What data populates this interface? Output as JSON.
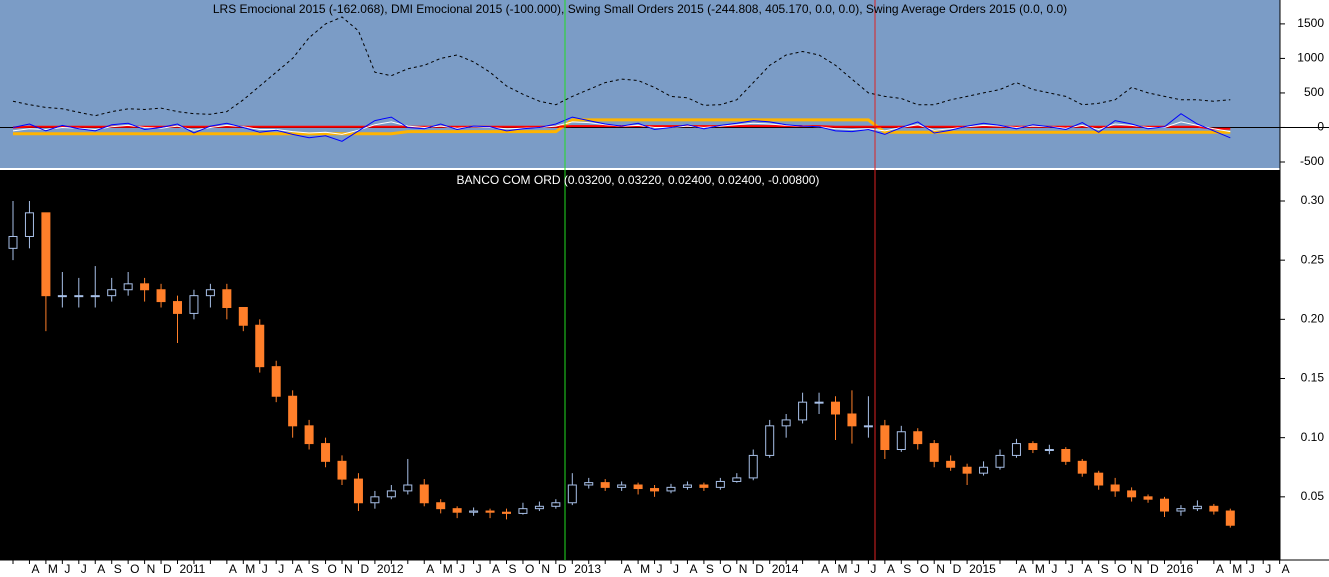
{
  "chart_data": [
    {
      "type": "line",
      "title": "LRS Emocional 2015 (-162.068), DMI Emocional 2015 (-100.000), Swing Small Orders 2015 (-244.808, 405.170, 0.0, 0.0), Swing Average Orders 2015 (0.0, 0.0)",
      "ylim": [
        -587,
        1846
      ],
      "yticks": [
        -500,
        0,
        500,
        1000,
        1500
      ],
      "zero_line": true,
      "background": "#7b9cc6",
      "series": [
        {
          "color": "#ffb400",
          "width": 3,
          "values": [
            -90,
            -90,
            -90,
            -90,
            -90,
            -90,
            -90,
            -90,
            -90,
            -90,
            -90,
            -90,
            -90,
            -90,
            -90,
            -90,
            -90,
            -90,
            -90,
            -90,
            -90,
            -90,
            -90,
            -90,
            -60,
            -60,
            -60,
            -60,
            -60,
            -60,
            -60,
            -60,
            -60,
            -60,
            110,
            110,
            110,
            110,
            110,
            110,
            110,
            110,
            110,
            110,
            110,
            110,
            110,
            110,
            110,
            110,
            110,
            110,
            110,
            -70,
            -70,
            -70,
            -70,
            -70,
            -70,
            -70,
            -70,
            -70,
            -70,
            -70,
            -70,
            -70,
            -70,
            -70,
            -70,
            -70,
            -70,
            -70,
            -70,
            -70,
            -70
          ]
        },
        {
          "color": "#ff0000",
          "width": 2,
          "values": [
            0,
            10,
            10,
            10,
            10,
            10,
            10,
            10,
            10,
            10,
            10,
            10,
            10,
            10,
            10,
            10,
            10,
            10,
            10,
            10,
            10,
            10,
            10,
            10,
            10,
            10,
            10,
            10,
            10,
            10,
            10,
            10,
            10,
            10,
            20,
            20,
            20,
            20,
            20,
            20,
            20,
            20,
            20,
            20,
            20,
            20,
            20,
            20,
            20,
            20,
            10,
            10,
            10,
            10,
            10,
            10,
            10,
            10,
            10,
            10,
            10,
            10,
            10,
            10,
            10,
            10,
            10,
            10,
            10,
            10,
            10,
            10,
            10,
            -20,
            -20
          ]
        },
        {
          "color": "#ffffff",
          "width": 1,
          "values": [
            -50,
            -20,
            -30,
            0,
            -10,
            -30,
            10,
            30,
            0,
            -10,
            20,
            -40,
            0,
            30,
            10,
            -30,
            -30,
            -60,
            -80,
            -70,
            -100,
            -40,
            40,
            80,
            20,
            0,
            20,
            -10,
            10,
            0,
            -20,
            -10,
            0,
            20,
            80,
            70,
            40,
            20,
            30,
            0,
            0,
            20,
            0,
            20,
            40,
            60,
            50,
            30,
            20,
            10,
            -20,
            -30,
            -20,
            -50,
            0,
            40,
            -40,
            -20,
            10,
            30,
            20,
            0,
            20,
            10,
            -10,
            30,
            -30,
            50,
            30,
            0,
            0,
            80,
            30,
            -20,
            -60
          ]
        },
        {
          "color": "#0000ff",
          "width": 1,
          "values": [
            0,
            50,
            -50,
            30,
            -20,
            -50,
            40,
            60,
            -30,
            0,
            50,
            -80,
            20,
            60,
            0,
            -70,
            -40,
            -100,
            -150,
            -120,
            -200,
            -50,
            100,
            150,
            0,
            -20,
            50,
            -30,
            20,
            10,
            -50,
            -20,
            0,
            50,
            150,
            100,
            50,
            20,
            60,
            -30,
            0,
            40,
            -20,
            30,
            60,
            100,
            80,
            40,
            20,
            10,
            -50,
            -60,
            -30,
            -100,
            0,
            80,
            -80,
            -40,
            20,
            60,
            30,
            -20,
            40,
            10,
            -30,
            70,
            -70,
            100,
            50,
            -20,
            10,
            200,
            50,
            -50,
            -150
          ]
        },
        {
          "color": "#000000",
          "width": 1,
          "dashed": true,
          "values": [
            380,
            330,
            290,
            270,
            220,
            170,
            230,
            270,
            260,
            280,
            230,
            200,
            190,
            230,
            400,
            600,
            800,
            1000,
            1300,
            1500,
            1600,
            1400,
            800,
            750,
            850,
            900,
            1000,
            1050,
            950,
            800,
            600,
            480,
            380,
            330,
            450,
            550,
            650,
            700,
            680,
            580,
            450,
            430,
            320,
            330,
            400,
            650,
            900,
            1050,
            1100,
            1050,
            900,
            700,
            500,
            450,
            420,
            330,
            330,
            400,
            450,
            500,
            550,
            650,
            550,
            500,
            450,
            330,
            350,
            400,
            580,
            500,
            450,
            400,
            400,
            380,
            400
          ]
        }
      ]
    },
    {
      "type": "candlestick",
      "title": "BANCO COM ORD (0.03200, 0.03220, 0.02400, 0.02400, -0.00800)",
      "ylim": [
        0,
        0.3245
      ],
      "yticks": [
        {
          "value": 0.05,
          "label": "0.05"
        },
        {
          "value": 0.1,
          "label": "0.10"
        },
        {
          "value": 0.15,
          "label": "0.15"
        },
        {
          "value": 0.2,
          "label": "0.20"
        },
        {
          "value": 0.25,
          "label": "0.25"
        },
        {
          "value": 0.3,
          "label": "0.30"
        }
      ],
      "up_color": "#a8c0e8",
      "down_color": "#ff7f2a",
      "background": "#000000",
      "categories": [
        null,
        "A",
        "M",
        "J",
        "J",
        "A",
        "S",
        "O",
        "N",
        "D",
        "2011",
        null,
        null,
        "A",
        "M",
        "J",
        "J",
        "A",
        "S",
        "O",
        "N",
        "D",
        "2012",
        null,
        null,
        "A",
        "M",
        "J",
        "J",
        "A",
        "S",
        "O",
        "N",
        "D",
        "2013",
        null,
        null,
        "A",
        "M",
        "J",
        "J",
        "A",
        "S",
        "O",
        "N",
        "D",
        "2014",
        null,
        null,
        "A",
        "M",
        "J",
        "J",
        "A",
        "S",
        "O",
        "N",
        "D",
        "2015",
        null,
        null,
        "A",
        "M",
        "J",
        "J",
        "A",
        "S",
        "O",
        "N",
        "D",
        "2016",
        null,
        null,
        "A",
        "M",
        "J",
        "J",
        "A"
      ],
      "open": [
        0.26,
        0.27,
        0.29,
        0.22,
        0.22,
        0.22,
        0.22,
        0.225,
        0.23,
        0.225,
        0.215,
        0.205,
        0.22,
        0.225,
        0.21,
        0.195,
        0.16,
        0.135,
        0.11,
        0.095,
        0.08,
        0.065,
        0.045,
        0.05,
        0.055,
        0.06,
        0.045,
        0.04,
        0.037,
        0.038,
        0.037,
        0.036,
        0.04,
        0.042,
        0.045,
        0.06,
        0.062,
        0.058,
        0.06,
        0.057,
        0.055,
        0.058,
        0.06,
        0.058,
        0.063,
        0.066,
        0.085,
        0.11,
        0.115,
        0.13,
        0.13,
        0.12,
        0.11,
        0.11,
        0.09,
        0.105,
        0.095,
        0.08,
        0.075,
        0.07,
        0.075,
        0.085,
        0.095,
        0.09,
        0.09,
        0.08,
        0.07,
        0.06,
        0.055,
        0.05,
        0.048,
        0.038,
        0.04,
        0.042,
        0.038,
        null,
        null,
        null
      ],
      "high": [
        0.3,
        0.3,
        0.29,
        0.24,
        0.235,
        0.245,
        0.235,
        0.24,
        0.235,
        0.23,
        0.22,
        0.225,
        0.23,
        0.23,
        0.21,
        0.2,
        0.165,
        0.14,
        0.115,
        0.1,
        0.085,
        0.07,
        0.055,
        0.06,
        0.082,
        0.065,
        0.048,
        0.042,
        0.041,
        0.04,
        0.04,
        0.045,
        0.046,
        0.048,
        0.07,
        0.066,
        0.065,
        0.063,
        0.062,
        0.06,
        0.061,
        0.063,
        0.062,
        0.066,
        0.07,
        0.09,
        0.115,
        0.12,
        0.138,
        0.138,
        0.135,
        0.14,
        0.135,
        0.115,
        0.11,
        0.108,
        0.098,
        0.085,
        0.078,
        0.08,
        0.09,
        0.099,
        0.097,
        0.094,
        0.092,
        0.082,
        0.072,
        0.066,
        0.058,
        0.052,
        0.05,
        0.043,
        0.047,
        0.044,
        0.04,
        null,
        null,
        null
      ],
      "low": [
        0.25,
        0.26,
        0.19,
        0.21,
        0.21,
        0.21,
        0.215,
        0.22,
        0.215,
        0.21,
        0.18,
        0.2,
        0.21,
        0.2,
        0.19,
        0.155,
        0.13,
        0.1,
        0.09,
        0.075,
        0.06,
        0.038,
        0.04,
        0.048,
        0.052,
        0.042,
        0.036,
        0.032,
        0.034,
        0.032,
        0.031,
        0.035,
        0.038,
        0.04,
        0.043,
        0.057,
        0.055,
        0.055,
        0.052,
        0.05,
        0.053,
        0.056,
        0.055,
        0.056,
        0.062,
        0.064,
        0.083,
        0.1,
        0.112,
        0.12,
        0.098,
        0.095,
        0.1,
        0.082,
        0.088,
        0.09,
        0.075,
        0.072,
        0.06,
        0.068,
        0.073,
        0.083,
        0.087,
        0.086,
        0.077,
        0.067,
        0.056,
        0.05,
        0.046,
        0.045,
        0.033,
        0.034,
        0.038,
        0.035,
        0.024,
        null,
        null,
        null
      ],
      "close": [
        0.27,
        0.29,
        0.22,
        0.22,
        0.22,
        0.22,
        0.225,
        0.23,
        0.225,
        0.215,
        0.205,
        0.22,
        0.225,
        0.21,
        0.195,
        0.16,
        0.135,
        0.11,
        0.095,
        0.08,
        0.065,
        0.045,
        0.05,
        0.055,
        0.06,
        0.045,
        0.04,
        0.037,
        0.038,
        0.037,
        0.036,
        0.04,
        0.042,
        0.045,
        0.06,
        0.062,
        0.058,
        0.06,
        0.057,
        0.055,
        0.058,
        0.06,
        0.058,
        0.063,
        0.066,
        0.085,
        0.11,
        0.115,
        0.13,
        0.13,
        0.12,
        0.11,
        0.11,
        0.09,
        0.105,
        0.095,
        0.08,
        0.075,
        0.07,
        0.075,
        0.085,
        0.095,
        0.09,
        0.09,
        0.08,
        0.07,
        0.06,
        0.055,
        0.05,
        0.048,
        0.038,
        0.04,
        0.042,
        0.038,
        0.026,
        null,
        null,
        null
      ]
    }
  ]
}
